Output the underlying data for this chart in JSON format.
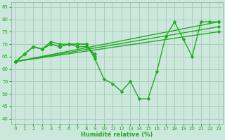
{
  "xlabel": "Humidité relative (%)",
  "background_color": "#cce8dc",
  "grid_color": "#aaccbb",
  "line_color": "#22aa22",
  "marker": "D",
  "markersize": 2.5,
  "linewidth": 1.0,
  "xlim": [
    -0.5,
    23.5
  ],
  "ylim": [
    38,
    87
  ],
  "yticks": [
    40,
    45,
    50,
    55,
    60,
    65,
    70,
    75,
    80,
    85
  ],
  "xticks": [
    0,
    1,
    2,
    3,
    4,
    5,
    6,
    7,
    8,
    9,
    10,
    11,
    12,
    13,
    14,
    15,
    16,
    17,
    18,
    19,
    20,
    21,
    22,
    23
  ],
  "series": [
    [
      63,
      66,
      69,
      68,
      71,
      70,
      70,
      70,
      70,
      64,
      56,
      54,
      51,
      55,
      48,
      48,
      59,
      73,
      79,
      72,
      65,
      79,
      79,
      79
    ],
    [
      63,
      null,
      null,
      null,
      null,
      null,
      null,
      null,
      null,
      null,
      null,
      null,
      null,
      null,
      null,
      null,
      null,
      null,
      null,
      null,
      null,
      null,
      null,
      79
    ],
    [
      63,
      null,
      null,
      null,
      null,
      null,
      null,
      null,
      null,
      null,
      null,
      null,
      null,
      null,
      null,
      null,
      null,
      null,
      null,
      null,
      null,
      null,
      null,
      77
    ],
    [
      63,
      null,
      null,
      null,
      null,
      null,
      null,
      null,
      null,
      null,
      null,
      null,
      null,
      null,
      null,
      null,
      null,
      null,
      null,
      null,
      null,
      null,
      null,
      75
    ],
    [
      63,
      66,
      69,
      68,
      70,
      69,
      70,
      70,
      70,
      65,
      null,
      null,
      null,
      null,
      null,
      null,
      null,
      null,
      null,
      null,
      null,
      null,
      null,
      null
    ],
    [
      63,
      null,
      69,
      68,
      70,
      69,
      70,
      69,
      69,
      66,
      null,
      null,
      null,
      null,
      null,
      null,
      null,
      null,
      null,
      null,
      null,
      null,
      null,
      null
    ]
  ]
}
